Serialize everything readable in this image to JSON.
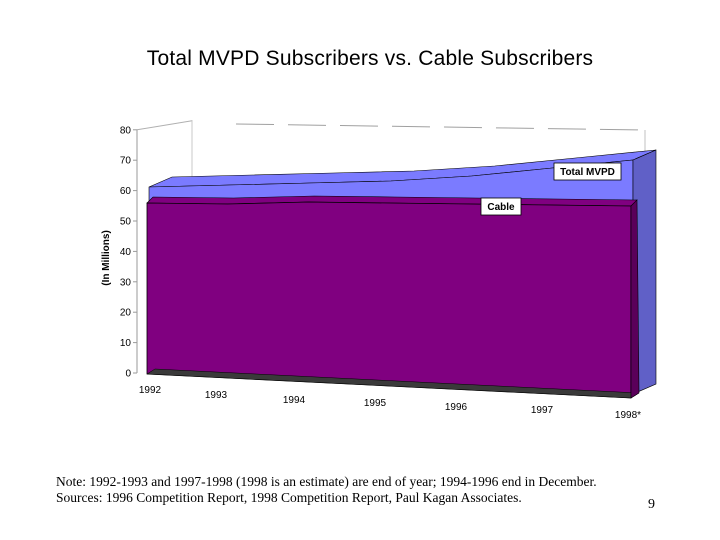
{
  "chart_data": {
    "type": "area",
    "title": "Total MVPD Subscribers vs. Cable Subscribers",
    "ylabel": "(In Millions)",
    "xlabel": "",
    "ylim": [
      0,
      80
    ],
    "yticks": [
      0,
      10,
      20,
      30,
      40,
      50,
      60,
      70,
      80
    ],
    "categories": [
      "1992",
      "1993",
      "1994",
      "1995",
      "1996",
      "1997",
      "1998*"
    ],
    "series": [
      {
        "name": "Total MVPD",
        "color": "#7b7bff",
        "values": [
          61,
          63,
          65,
          67,
          70,
          74,
          78
        ]
      },
      {
        "name": "Cable",
        "color": "#800080",
        "values": [
          57,
          58,
          60,
          61,
          62,
          63,
          64
        ]
      }
    ],
    "grid": false,
    "style": "3d"
  },
  "notes": {
    "line1": "Note: 1992-1993 and 1997-1998 (1998 is an estimate) are end of year; 1994-1996 end in December.",
    "line2": "Sources: 1996 Competition Report, 1998 Competition Report, Paul Kagan Associates."
  },
  "page_number": "9"
}
